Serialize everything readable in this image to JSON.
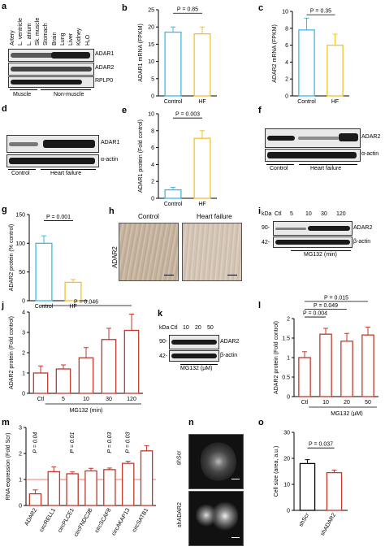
{
  "panels": {
    "a": {
      "label": "a",
      "lanes": [
        "Artery",
        "L. ventricle",
        "L. atrium",
        "Sk. muscle",
        "Stomach",
        "Brain",
        "Lung",
        "Liver",
        "Kidney",
        "H₂O"
      ],
      "bands": [
        "ADAR1",
        "ADAR2",
        "RPLP0"
      ],
      "groups": [
        "Muscle",
        "Non-muscle"
      ]
    },
    "b": {
      "label": "b",
      "pvalue": "P = 0.85",
      "chart_data": {
        "type": "bar",
        "categories": [
          "Control",
          "HF"
        ],
        "values": [
          18.5,
          18.0
        ],
        "errors": [
          1.5,
          2.0
        ],
        "ylabel": "ADAR1 mRNA (FPKM)",
        "ylim": [
          0,
          25
        ],
        "yticks": [
          0,
          5,
          10,
          15,
          20,
          25
        ],
        "colors": [
          "#3cb8e6",
          "#f2c12e"
        ]
      }
    },
    "c": {
      "label": "c",
      "pvalue": "P = 0.35",
      "chart_data": {
        "type": "bar",
        "categories": [
          "Control",
          "HF"
        ],
        "values": [
          7.8,
          6.0
        ],
        "errors": [
          1.4,
          1.3
        ],
        "ylabel": "ADAR2 mRNA (FPKM)",
        "ylim": [
          0,
          10
        ],
        "yticks": [
          0,
          2,
          4,
          6,
          8,
          10
        ],
        "colors": [
          "#3cb8e6",
          "#f2c12e"
        ]
      }
    },
    "d": {
      "label": "d",
      "bands": [
        "ADAR1",
        "α-actin"
      ],
      "groups": [
        "Control",
        "Heart failure"
      ]
    },
    "e": {
      "label": "e",
      "pvalue": "P = 0.003",
      "chart_data": {
        "type": "bar",
        "categories": [
          "Control",
          "HF"
        ],
        "values": [
          1.0,
          7.1
        ],
        "errors": [
          0.3,
          0.9
        ],
        "ylabel": "ADAR1 protein (Fold control)",
        "ylim": [
          0,
          10
        ],
        "yticks": [
          0,
          2,
          4,
          6,
          8,
          10
        ],
        "colors": [
          "#3cb8e6",
          "#f2c12e"
        ]
      }
    },
    "f": {
      "label": "f",
      "bands": [
        "ADAR2",
        "α-actin"
      ],
      "groups": [
        "Control",
        "Heart failure"
      ]
    },
    "g": {
      "label": "g",
      "pvalue": "P = 0.001",
      "chart_data": {
        "type": "bar",
        "categories": [
          "Control",
          "HF"
        ],
        "values": [
          100,
          32
        ],
        "errors": [
          13,
          5
        ],
        "ylabel": "ADAR2 protein (% control)",
        "ylim": [
          0,
          150
        ],
        "yticks": [
          0,
          50,
          100,
          150
        ],
        "colors": [
          "#3cb8e6",
          "#f2c12e"
        ]
      }
    },
    "h": {
      "label": "h",
      "ylabel": "ADAR2",
      "titles": [
        "Control",
        "Heart failure"
      ]
    },
    "i": {
      "label": "i",
      "kda": "kDa",
      "lanes": [
        "Ctl",
        "5",
        "10",
        "30",
        "120"
      ],
      "markers": [
        "90-",
        "42-"
      ],
      "bands": [
        "ADAR2",
        "β-actin"
      ],
      "xlabel": "MG132 (min)"
    },
    "j": {
      "label": "j",
      "pvalue": "P = 0.046",
      "xlabel": "MG132 (min)",
      "chart_data": {
        "type": "bar",
        "categories": [
          "Ctl",
          "5",
          "10",
          "30",
          "120"
        ],
        "values": [
          1.0,
          1.2,
          1.75,
          2.65,
          3.1
        ],
        "errors": [
          0.35,
          0.2,
          0.5,
          0.55,
          0.8
        ],
        "ylabel": "ADAR2 protein (Fold control)",
        "ylim": [
          0,
          4
        ],
        "yticks": [
          0,
          1,
          2,
          3,
          4
        ],
        "colors": [
          "#c0392b"
        ]
      }
    },
    "k": {
      "label": "k",
      "kda": "kDa",
      "lanes": [
        "Ctl",
        "10",
        "20",
        "50"
      ],
      "markers": [
        "90-",
        "42-"
      ],
      "bands": [
        "ADAR2",
        "β-actin"
      ],
      "xlabel": "MG132 (µM)"
    },
    "l": {
      "label": "l",
      "pvalues": [
        "P = 0.015",
        "P = 0.049",
        "P = 0.004"
      ],
      "xlabel": "MG132 (µM)",
      "chart_data": {
        "type": "bar",
        "categories": [
          "Ctl",
          "10",
          "20",
          "50"
        ],
        "values": [
          1.0,
          1.6,
          1.42,
          1.58
        ],
        "errors": [
          0.15,
          0.15,
          0.2,
          0.2
        ],
        "ylabel": "ADAR2 protein (Fold control)",
        "ylim": [
          0,
          2.0
        ],
        "yticks": [
          0,
          0.5,
          1.0,
          1.5,
          2.0
        ],
        "colors": [
          "#c0392b"
        ]
      }
    },
    "m": {
      "label": "m",
      "pvalues": [
        "P = 0.04",
        "P = 0.01",
        "P = 0.03",
        "P = 0.03"
      ],
      "chart_data": {
        "type": "bar",
        "categories": [
          "ADAR2",
          "circRELL1",
          "circPLCE1",
          "circFNDC3B",
          "circSCAF8",
          "circAKAP13",
          "circSATB1"
        ],
        "values": [
          0.45,
          1.3,
          1.22,
          1.33,
          1.38,
          1.62,
          2.1
        ],
        "errors": [
          0.15,
          0.18,
          0.07,
          0.1,
          0.06,
          0.08,
          0.2
        ],
        "ylabel": "RNA expression (Fold Scr)",
        "ylim": [
          0,
          3
        ],
        "yticks": [
          0,
          1,
          2,
          3
        ],
        "colors": [
          "#c0392b"
        ]
      }
    },
    "n": {
      "label": "n",
      "rows": [
        "shScr",
        "shADAR2"
      ]
    },
    "o": {
      "label": "o",
      "pvalue": "P = 0.037",
      "chart_data": {
        "type": "bar",
        "categories": [
          "shScr",
          "shADAR2"
        ],
        "values": [
          18,
          14.5
        ],
        "errors": [
          1.5,
          1.0
        ],
        "ylabel": "Cell size (area, a.u.)",
        "ylim": [
          0,
          30
        ],
        "yticks": [
          0,
          10,
          20,
          30
        ],
        "colors": [
          "#000000",
          "#c0392b"
        ]
      }
    }
  }
}
